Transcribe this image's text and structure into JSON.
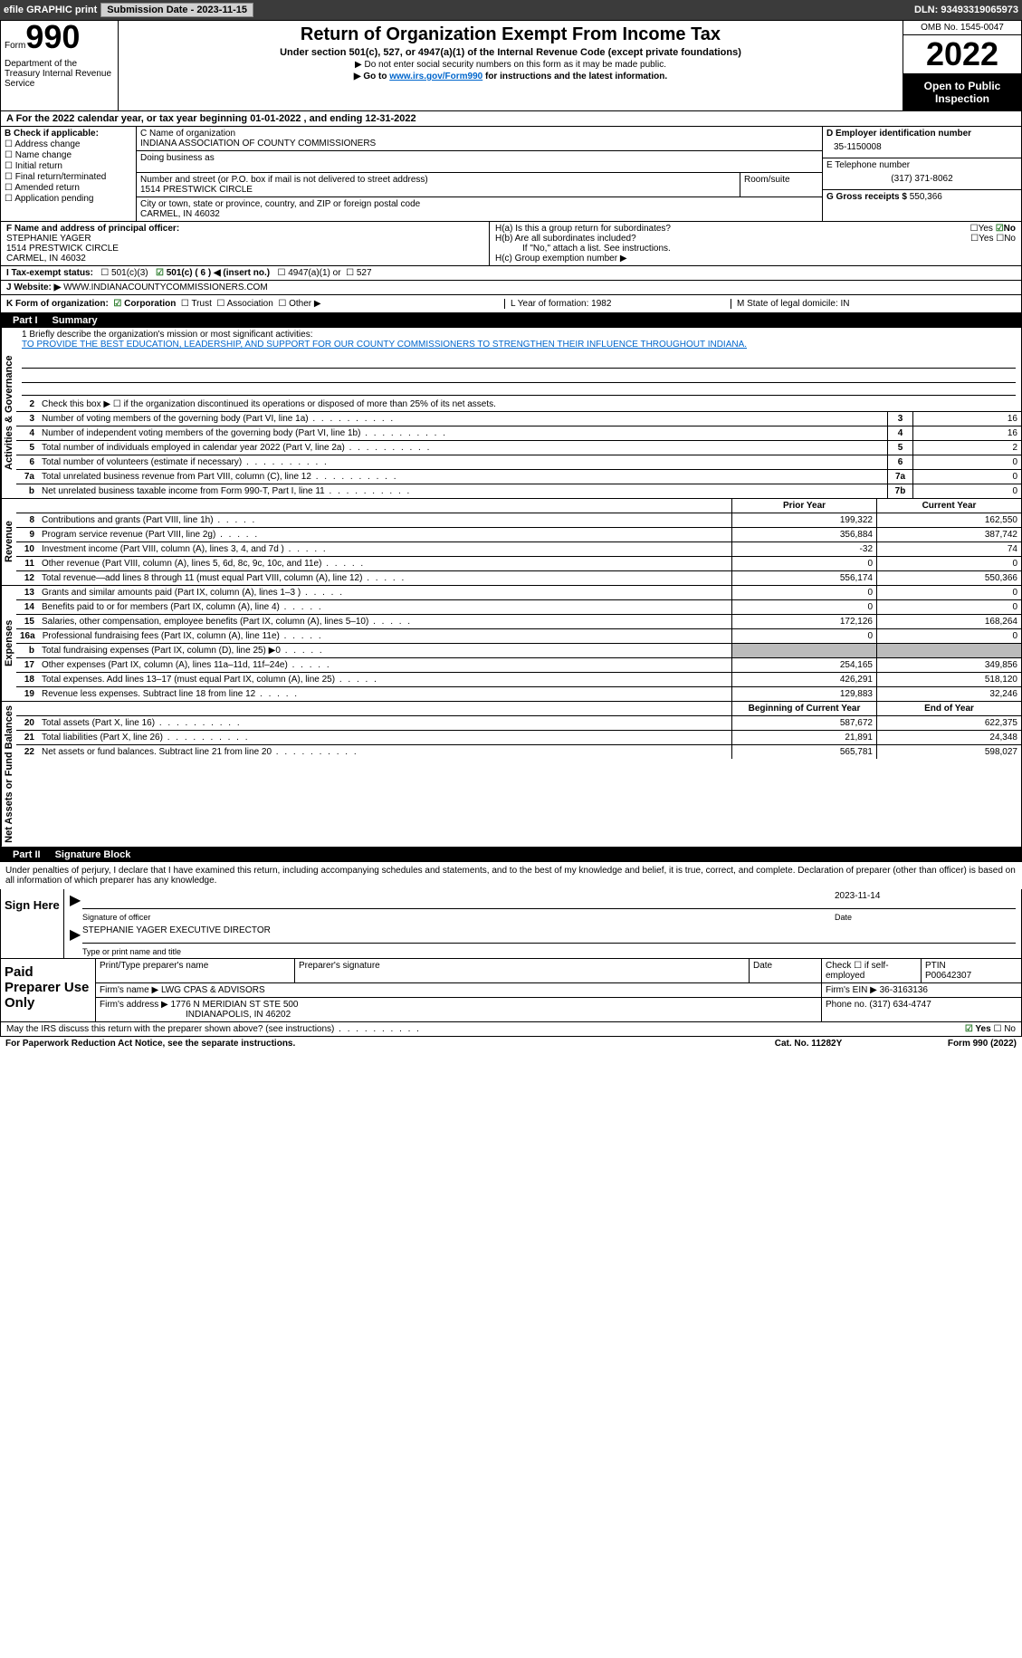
{
  "toolbar": {
    "efile": "efile GRAPHIC print",
    "sub_label": "Submission Date - 2023-11-15",
    "dln": "DLN: 93493319065973"
  },
  "header": {
    "form_word": "Form",
    "form_num": "990",
    "dept": "Department of the Treasury Internal Revenue Service",
    "title": "Return of Organization Exempt From Income Tax",
    "sub1": "Under section 501(c), 527, or 4947(a)(1) of the Internal Revenue Code (except private foundations)",
    "sub2": "▶ Do not enter social security numbers on this form as it may be made public.",
    "sub3_pre": "▶ Go to ",
    "sub3_link": "www.irs.gov/Form990",
    "sub3_post": " for instructions and the latest information.",
    "omb": "OMB No. 1545-0047",
    "year": "2022",
    "open_pub": "Open to Public Inspection"
  },
  "row_a": "A For the 2022 calendar year, or tax year beginning 01-01-2022    , and ending 12-31-2022",
  "col_b": {
    "title": "B Check if applicable:",
    "addr": "Address change",
    "name": "Name change",
    "init": "Initial return",
    "final": "Final return/terminated",
    "amend": "Amended return",
    "app": "Application pending"
  },
  "org": {
    "name_label": "C Name of organization",
    "name": "INDIANA ASSOCIATION OF COUNTY COMMISSIONERS",
    "dba_label": "Doing business as",
    "addr_label": "Number and street (or P.O. box if mail is not delivered to street address)",
    "addr": "1514 PRESTWICK CIRCLE",
    "room_label": "Room/suite",
    "city_label": "City or town, state or province, country, and ZIP or foreign postal code",
    "city": "CARMEL, IN  46032"
  },
  "right_col": {
    "ein_label": "D Employer identification number",
    "ein": "35-1150008",
    "phone_label": "E Telephone number",
    "phone": "(317) 371-8062",
    "gross_label": "G Gross receipts $ ",
    "gross": "550,366"
  },
  "f_section": {
    "label": "F Name and address of principal officer:",
    "name": "STEPHANIE YAGER",
    "addr": "1514 PRESTWICK CIRCLE",
    "city": "CARMEL, IN  46032"
  },
  "h_section": {
    "a_label": "H(a)  Is this a group return for subordinates?",
    "b_label": "H(b)  Are all subordinates included?",
    "b_note": "If \"No,\" attach a list. See instructions.",
    "c_label": "H(c)  Group exemption number ▶",
    "yes": "Yes",
    "no": "No"
  },
  "status": {
    "label": "I     Tax-exempt status:",
    "o1": "501(c)(3)",
    "o2": "501(c) ( 6 ) ◀ (insert no.)",
    "o3": "4947(a)(1) or",
    "o4": "527"
  },
  "website": {
    "label": "J    Website: ▶",
    "val": "  WWW.INDIANACOUNTYCOMMISSIONERS.COM"
  },
  "k_row": {
    "label": "K Form of organization:",
    "corp": "Corporation",
    "trust": "Trust",
    "assoc": "Association",
    "other": "Other ▶",
    "l": "L Year of formation: 1982",
    "m": "M State of legal domicile: IN"
  },
  "part1": {
    "num": "Part I",
    "title": "Summary"
  },
  "mission": {
    "label": "1   Briefly describe the organization's mission or most significant activities:",
    "text": "TO PROVIDE THE BEST EDUCATION, LEADERSHIP, AND SUPPORT FOR OUR COUNTY COMMISSIONERS TO STRENGTHEN THEIR INFLUENCE THROUGHOUT INDIANA."
  },
  "line2": "Check this box ▶ ☐  if the organization discontinued its operations or disposed of more than 25% of its net assets.",
  "sides": {
    "gov": "Activities & Governance",
    "rev": "Revenue",
    "exp": "Expenses",
    "net": "Net Assets or Fund Balances"
  },
  "gov_rows": [
    {
      "n": "3",
      "d": "Number of voting members of the governing body (Part VI, line 1a)",
      "bn": "3",
      "v": "16"
    },
    {
      "n": "4",
      "d": "Number of independent voting members of the governing body (Part VI, line 1b)",
      "bn": "4",
      "v": "16"
    },
    {
      "n": "5",
      "d": "Total number of individuals employed in calendar year 2022 (Part V, line 2a)",
      "bn": "5",
      "v": "2"
    },
    {
      "n": "6",
      "d": "Total number of volunteers (estimate if necessary)",
      "bn": "6",
      "v": "0"
    },
    {
      "n": "7a",
      "d": "Total unrelated business revenue from Part VIII, column (C), line 12",
      "bn": "7a",
      "v": "0"
    },
    {
      "n": "b",
      "d": "Net unrelated business taxable income from Form 990-T, Part I, line 11",
      "bn": "7b",
      "v": "0"
    }
  ],
  "rev_hdr": {
    "c1": "Prior Year",
    "c2": "Current Year"
  },
  "rev_rows": [
    {
      "n": "8",
      "d": "Contributions and grants (Part VIII, line 1h)",
      "c1": "199,322",
      "c2": "162,550"
    },
    {
      "n": "9",
      "d": "Program service revenue (Part VIII, line 2g)",
      "c1": "356,884",
      "c2": "387,742"
    },
    {
      "n": "10",
      "d": "Investment income (Part VIII, column (A), lines 3, 4, and 7d )",
      "c1": "-32",
      "c2": "74"
    },
    {
      "n": "11",
      "d": "Other revenue (Part VIII, column (A), lines 5, 6d, 8c, 9c, 10c, and 11e)",
      "c1": "0",
      "c2": "0"
    },
    {
      "n": "12",
      "d": "Total revenue—add lines 8 through 11 (must equal Part VIII, column (A), line 12)",
      "c1": "556,174",
      "c2": "550,366"
    }
  ],
  "exp_rows": [
    {
      "n": "13",
      "d": "Grants and similar amounts paid (Part IX, column (A), lines 1–3 )",
      "c1": "0",
      "c2": "0"
    },
    {
      "n": "14",
      "d": "Benefits paid to or for members (Part IX, column (A), line 4)",
      "c1": "0",
      "c2": "0"
    },
    {
      "n": "15",
      "d": "Salaries, other compensation, employee benefits (Part IX, column (A), lines 5–10)",
      "c1": "172,126",
      "c2": "168,264"
    },
    {
      "n": "16a",
      "d": "Professional fundraising fees (Part IX, column (A), line 11e)",
      "c1": "0",
      "c2": "0"
    },
    {
      "n": "b",
      "d": "Total fundraising expenses (Part IX, column (D), line 25) ▶0",
      "c1": "GREY",
      "c2": "GREY"
    },
    {
      "n": "17",
      "d": "Other expenses (Part IX, column (A), lines 11a–11d, 11f–24e)",
      "c1": "254,165",
      "c2": "349,856"
    },
    {
      "n": "18",
      "d": "Total expenses. Add lines 13–17 (must equal Part IX, column (A), line 25)",
      "c1": "426,291",
      "c2": "518,120"
    },
    {
      "n": "19",
      "d": "Revenue less expenses. Subtract line 18 from line 12",
      "c1": "129,883",
      "c2": "32,246"
    }
  ],
  "net_hdr": {
    "c1": "Beginning of Current Year",
    "c2": "End of Year"
  },
  "net_rows": [
    {
      "n": "20",
      "d": "Total assets (Part X, line 16)",
      "c1": "587,672",
      "c2": "622,375"
    },
    {
      "n": "21",
      "d": "Total liabilities (Part X, line 26)",
      "c1": "21,891",
      "c2": "24,348"
    },
    {
      "n": "22",
      "d": "Net assets or fund balances. Subtract line 21 from line 20",
      "c1": "565,781",
      "c2": "598,027"
    }
  ],
  "part2": {
    "num": "Part II",
    "title": "Signature Block"
  },
  "sig": {
    "decl": "Under penalties of perjury, I declare that I have examined this return, including accompanying schedules and statements, and to the best of my knowledge and belief, it is true, correct, and complete. Declaration of preparer (other than officer) is based on all information of which preparer has any knowledge.",
    "here": "Sign Here",
    "sig_label": "Signature of officer",
    "date": "2023-11-14",
    "date_label": "Date",
    "name": "STEPHANIE YAGER  EXECUTIVE DIRECTOR",
    "name_label": "Type or print name and title"
  },
  "prep": {
    "title": "Paid Preparer Use Only",
    "name_label": "Print/Type preparer's name",
    "sig_label": "Preparer's signature",
    "date_label": "Date",
    "check_label": "Check ☐ if self-employed",
    "ptin_label": "PTIN",
    "ptin": "P00642307",
    "firm_label": "Firm's name      ▶",
    "firm": "LWG CPAS & ADVISORS",
    "ein_label": "Firm's EIN ▶",
    "ein": "36-3163136",
    "addr_label": "Firm's address ▶",
    "addr1": "1776 N MERIDIAN ST STE 500",
    "addr2": "INDIANAPOLIS, IN  46202",
    "phone_label": "Phone no.",
    "phone": "(317) 634-4747"
  },
  "footer": {
    "discuss": "May the IRS discuss this return with the preparer shown above? (see instructions)",
    "yes": "Yes",
    "no": "No",
    "pra": "For Paperwork Reduction Act Notice, see the separate instructions.",
    "cat": "Cat. No. 11282Y",
    "form": "Form 990 (2022)"
  }
}
